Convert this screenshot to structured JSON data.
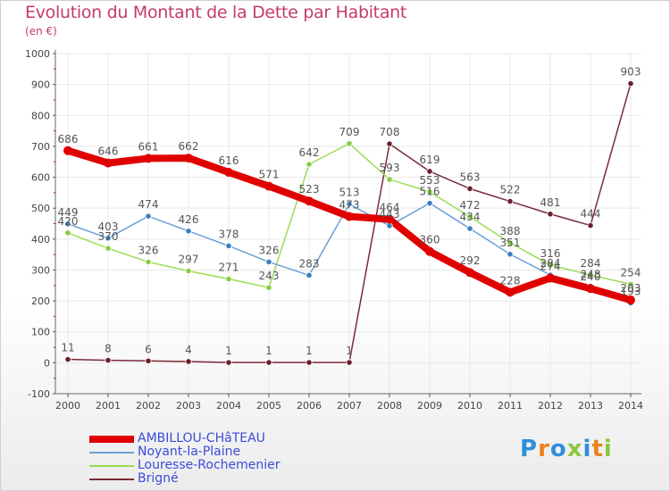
{
  "title": "Evolution du Montant de la Dette par Habitant",
  "subtitle": "(en €)",
  "logo": "Proxiti",
  "colors": {
    "title": "#c43a6e",
    "axis_text": "#444444",
    "grid": "#e9e9e9",
    "tick_red": "#cc0000",
    "legend_text": "#3b4bd8",
    "value_label": "#555555"
  },
  "chart_data": {
    "type": "line",
    "title": "Evolution du Montant de la Dette par Habitant",
    "subtitle": "(en €)",
    "xlabel": "",
    "ylabel": "",
    "ylim": [
      -100,
      1000
    ],
    "yticks": [
      -100,
      0,
      100,
      200,
      300,
      400,
      500,
      600,
      700,
      800,
      900,
      1000
    ],
    "categories": [
      "2000",
      "2001",
      "2002",
      "2003",
      "2004",
      "2005",
      "2006",
      "2007",
      "2008",
      "2009",
      "2010",
      "2011",
      "2012",
      "2013",
      "2014"
    ],
    "grid": true,
    "legend_position": "bottom-left",
    "series": [
      {
        "name": "AMBILLOU-CHâTEAU",
        "color": "#e00000",
        "marker_color": "#e00000",
        "width": 8,
        "values": [
          686,
          646,
          661,
          662,
          616,
          571,
          523,
          473,
          464,
          360,
          292,
          228,
          274,
          240,
          203
        ]
      },
      {
        "name": "Noyant-la-Plaine",
        "color": "#6aa0d8",
        "marker_color": "#3c7ec4",
        "width": 1.5,
        "values": [
          449,
          403,
          474,
          426,
          378,
          326,
          283,
          513,
          443,
          516,
          434,
          351,
          284,
          248,
          193
        ]
      },
      {
        "name": "Louresse-Rochemenier",
        "color": "#99dd55",
        "marker_color": "#88cc44",
        "width": 1.5,
        "values": [
          420,
          370,
          326,
          297,
          271,
          243,
          642,
          709,
          593,
          553,
          472,
          388,
          316,
          284,
          254
        ]
      },
      {
        "name": "Brigné",
        "color": "#7a2a38",
        "marker_color": "#6a1f2c",
        "width": 1.5,
        "values": [
          11,
          8,
          6,
          4,
          1,
          1,
          1,
          1,
          708,
          619,
          563,
          522,
          481,
          444,
          903
        ]
      }
    ],
    "labels": {
      "AMBILLOU-CHâTEAU": [
        "686",
        "646",
        "661",
        "662",
        "616",
        "571",
        "523",
        "473",
        "464",
        "360",
        "292",
        "228",
        "274",
        "240",
        "203"
      ],
      "Noyant-la-Plaine": [
        "449",
        "403",
        "474",
        "426",
        "378",
        "326",
        "283",
        "513",
        "443",
        "516",
        "434",
        "351",
        "284",
        "248",
        "193"
      ],
      "Louresse-Rochemenier": [
        "420",
        "370",
        "326",
        "297",
        "271",
        "243",
        "642",
        "709",
        "593",
        "553",
        "472",
        "388",
        "316",
        "284",
        "254"
      ],
      "Brigné": [
        "11",
        "8",
        "6",
        "4",
        "1",
        "1",
        "1",
        "1",
        "708",
        "619",
        "563",
        "522",
        "481",
        "444",
        "903"
      ]
    }
  }
}
